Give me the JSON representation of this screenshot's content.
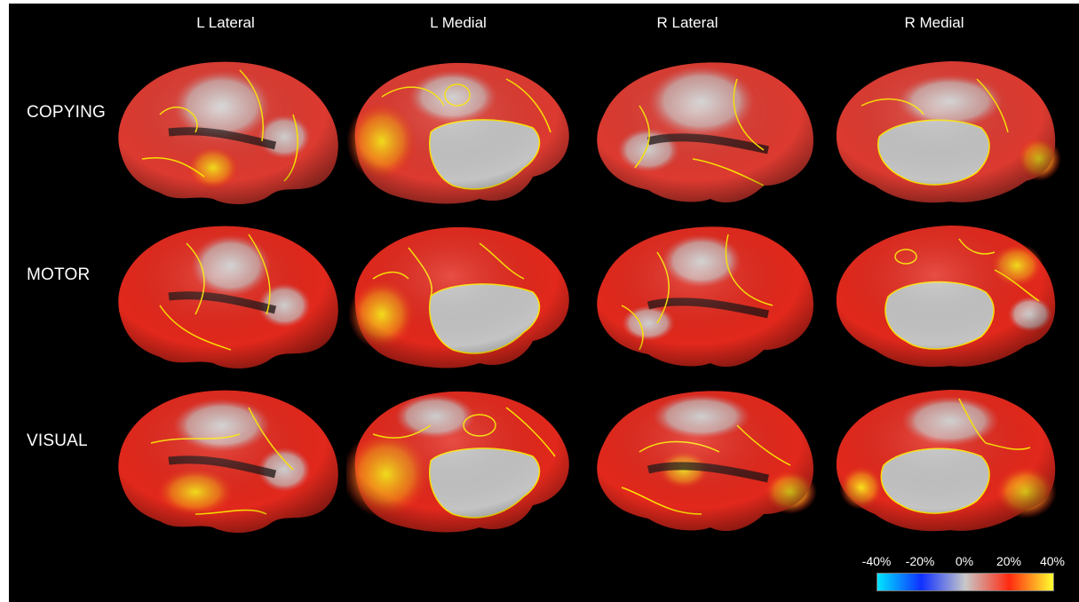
{
  "columns": [
    "L Lateral",
    "L Medial",
    "R Lateral",
    "R Medial"
  ],
  "rows": [
    "COPYING",
    "MOTOR",
    "VISUAL"
  ],
  "colorbar": {
    "ticks": [
      "-40%",
      "-20%",
      "0%",
      "20%",
      "40%"
    ],
    "colors": [
      "#00e5ff",
      "#1030ff",
      "#c8c8c8",
      "#ff2a10",
      "#ffff30"
    ]
  },
  "palette": {
    "background": "#000000",
    "surface_gray": "#c8c8c8",
    "surface_red": "#e8221a",
    "hot_yellow": "#f5d020",
    "contour": "#ffe600"
  }
}
